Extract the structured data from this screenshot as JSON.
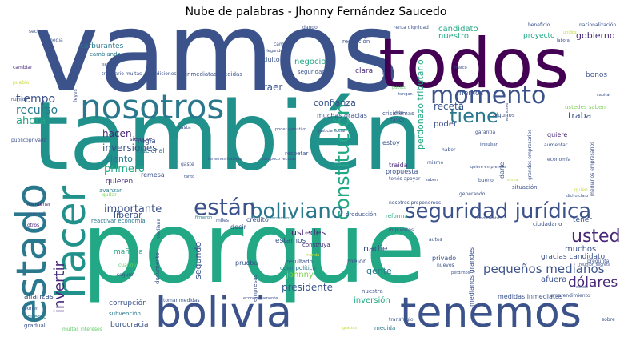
{
  "title": "Nube de palabras - Jhonny Fernández Saucedo",
  "colors": {
    "navy": "#3b528b",
    "purple": "#440154",
    "violet": "#482878",
    "teal": "#21918c",
    "teal_dark": "#2a788e",
    "green": "#22a884",
    "green_light": "#5ec962",
    "yellow": "#c8d835",
    "lime": "#7ad151"
  },
  "words": {
    "vamos": "vamos",
    "todos": "todos",
    "tambien": "también",
    "porque": "porque",
    "nosotros": "nosotros",
    "estado": "estado",
    "hacer": "hacer",
    "bolivia": "bolivia",
    "tenemos": "tenemos",
    "momento": "momento",
    "tiene": "tiene",
    "constitucion": "constitución",
    "seguridad_juridica": "seguridad jurídica",
    "boliviano": "boliviano",
    "estan": "están",
    "usted": "usted",
    "pequenos_medianos": "pequeños medianos",
    "dolares": "dólares",
    "invertir": "invertir",
    "importante": "importante",
    "recurso": "recurso",
    "ahora": "ahora",
    "tiempo": "tiempo",
    "primero": "primero",
    "inversiones": "inversiones",
    "hacen": "hacen",
    "ciento": "ciento",
    "quieren": "quieren",
    "liberar": "liberar",
    "ustedes": "ustedes",
    "nadie": "nadie",
    "gente": "gente",
    "presidente": "presidente",
    "segundo": "segundo",
    "poder": "poder",
    "receta": "receta",
    "traba": "traba",
    "hemos": "hemos",
    "confianza": "confianza",
    "muchas_gracias": "muchas gracias",
    "perdonazo_tributario": "perdonazo tributario",
    "candidato": "candidato",
    "nuestro": "nuestro",
    "gobierno": "gobierno",
    "bonos": "bonos",
    "negocio": "negocio",
    "traer": "traer",
    "indulto": "indulto",
    "clara": "clara",
    "darle": "darle",
    "quiere": "quiere",
    "muchos": "muchos",
    "afuera": "afuera",
    "gracias_candidato": "gracias candidato",
    "medianos_grandes": "medianos grandes",
    "empresas": "empresas",
    "inversion": "inversión",
    "corrupcion": "corrupción",
    "burocracia": "burocracia",
    "alianzas": "alianzas",
    "estamos": "estamos",
    "credito": "crédito",
    "decir": "decir",
    "estoy": "estoy",
    "mediana": "mediana",
    "manana": "mañana",
    "prueba": "prueba",
    "tomar_medidas": "tomar medidas",
    "subvencion": "subvención",
    "regla": "regla",
    "remesa": "remesa",
    "johnny": "johnny",
    "documento": "documento",
    "propuesta": "propuesta",
    "traida": "traída",
    "carburantes": "carburantes",
    "cambiando": "cambiando",
    "reduccion": "reducción",
    "seguridad": "seguridad",
    "proyecto": "proyecto",
    "sector": "sector",
    "media": "media",
    "cambiar": "cambiar",
    "pueblo": "pueblo",
    "condiciones": "condiciones",
    "inmediatas_medidas": "inmediatas medidas",
    "tributario_multas": "tributario multas",
    "nacional": "nacional",
    "algunos": "algunos",
    "cris_tienes": "crisistemas",
    "favor": "favor",
    "ustedes_saben": "ustedes saben",
    "capital": "capital",
    "garantia": "garantía",
    "haber": "haber",
    "impulsar": "impulsar",
    "aumentar": "aumentar",
    "economia": "economía",
    "tener": "tener",
    "ciudadano": "ciudadano",
    "emprendimiento": "emprendimiento",
    "nuestra": "nuestra",
    "medida": "medida",
    "sobre": "sobre",
    "construya": "construya",
    "resultado": "resultado",
    "color_politico": "color político",
    "mejor": "mejor",
    "privado": "privado",
    "nuevos": "nuevos",
    "perdimos": "perdimos",
    "impuestos": "impuestos",
    "reactivar_economia": "reactivar economía",
    "produccion": "producción",
    "reforma": "reforma",
    "medidas_inmediatas": "medidas inmediatas",
    "situacion": "situación",
    "bueno": "bueno",
    "generando": "generando",
    "autos": "autos",
    "respetar": "respetar",
    "tenes_apoyar": "tenés apoyar",
    "mismo": "mismo",
    "quiere_emprender": "quiere emprender",
    "saben": "saben",
    "gaste": "gaste",
    "tanto": "tanto",
    "hasta": "hasta",
    "avanzar": "avanzar",
    "quitar": "quitar",
    "samuel": "samuel",
    "mantener": "mantener",
    "otros": "otros",
    "acuerdo": "acuerdo",
    "gradual": "gradual",
    "poner": "poner",
    "multas_intereses": "multas intereses",
    "tienen_miles": "tienen miles",
    "renta_dignidad": "renta dignidad",
    "beneficio": "beneficio",
    "nacionalizacion": "nacionalización",
    "dando": "dando",
    "campo": "campo",
    "senor": "señor",
    "marco": "marco",
    "publico": "público",
    "tengan": "tengan",
    "visto": "visto",
    "humilde": "humilde",
    "publicoprivado": "públicoprivado",
    "justicia_social": "justicia social",
    "tampoco_recetas": "tampoco recetas",
    "tenemos_trabajar": "tenemos trabajar",
    "poder_ejecutivo": "poder ejecutivo",
    "nosotros_proponemos": "nosotros proponemos",
    "bonos_renta": "bonos renta",
    "transfugio": "transfugio",
    "desde": "desde",
    "pregunta": "pregunta",
    "reunion_secreta": "reunión secreta",
    "dicho_claro": "dicho claro",
    "medianos_empresarios": "medianos empresarios",
    "grandes_empresarios": "grandes empresarios",
    "incrementar": "incrementar",
    "firmeron": "firmeron",
    "miles": "miles",
    "pleno": "pleno",
    "cuando": "cuando",
    "seguro": "seguro",
    "economicamente": "económicamente",
    "manda": "manda",
    "gracias": "gracias",
    "siempre": "siempre",
    "quien": "quien",
    "nunca": "nunca",
    "hermosos": "hermosos",
    "unidos": "unidos",
    "laboral": "laboral",
    "ley": "ley",
    "leyes": "leyes",
    "llegando": "llegando"
  }
}
